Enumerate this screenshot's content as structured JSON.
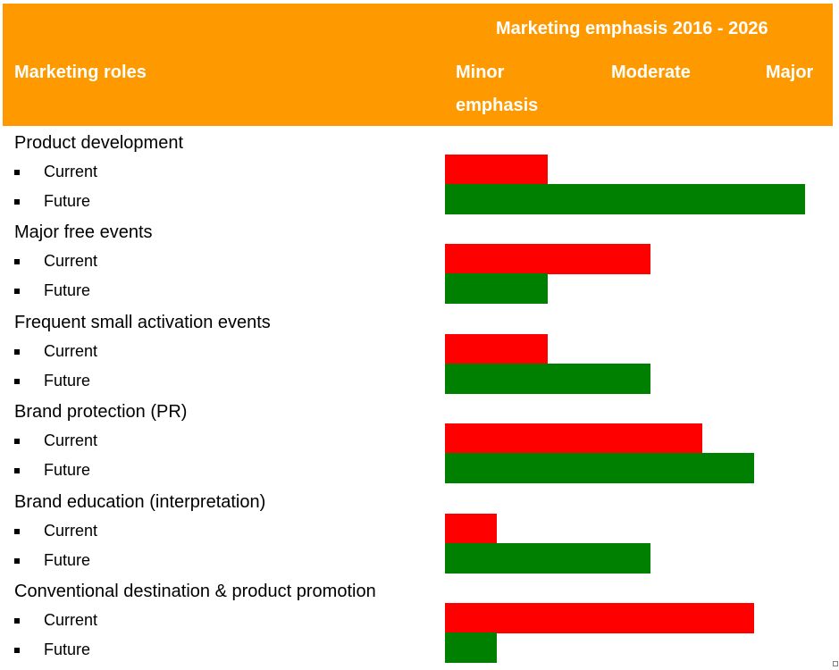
{
  "header": {
    "title": "Marketing emphasis 2016 - 2026",
    "roles_label": "Marketing roles",
    "scale_labels": {
      "minor_line1": "Minor",
      "minor_line2": "emphasis",
      "moderate": "Moderate",
      "major": "Major"
    }
  },
  "colors": {
    "header_bg": "#FF9900",
    "current": "#FF0000",
    "future": "#008000"
  },
  "chart_data": {
    "type": "bar",
    "orientation": "horizontal",
    "title": "Marketing emphasis 2016 - 2026",
    "categories": [
      "Product development",
      "Major free events",
      "Frequent small activation events",
      "Brand protection (PR)",
      "Brand education (interpretation)",
      "Conventional destination & product promotion"
    ],
    "series": [
      {
        "name": "Current",
        "color": "#FF0000",
        "values": [
          2,
          4,
          2,
          5,
          1,
          6
        ]
      },
      {
        "name": "Future",
        "color": "#008000",
        "values": [
          7,
          2,
          4,
          6,
          4,
          1
        ]
      }
    ],
    "xlim": [
      0,
      7
    ],
    "scale_ticks": [
      {
        "label": "Minor emphasis",
        "value": 0
      },
      {
        "label": "Moderate",
        "value": 4
      },
      {
        "label": "Major",
        "value": 7
      }
    ],
    "legend": "none",
    "grid": false
  }
}
